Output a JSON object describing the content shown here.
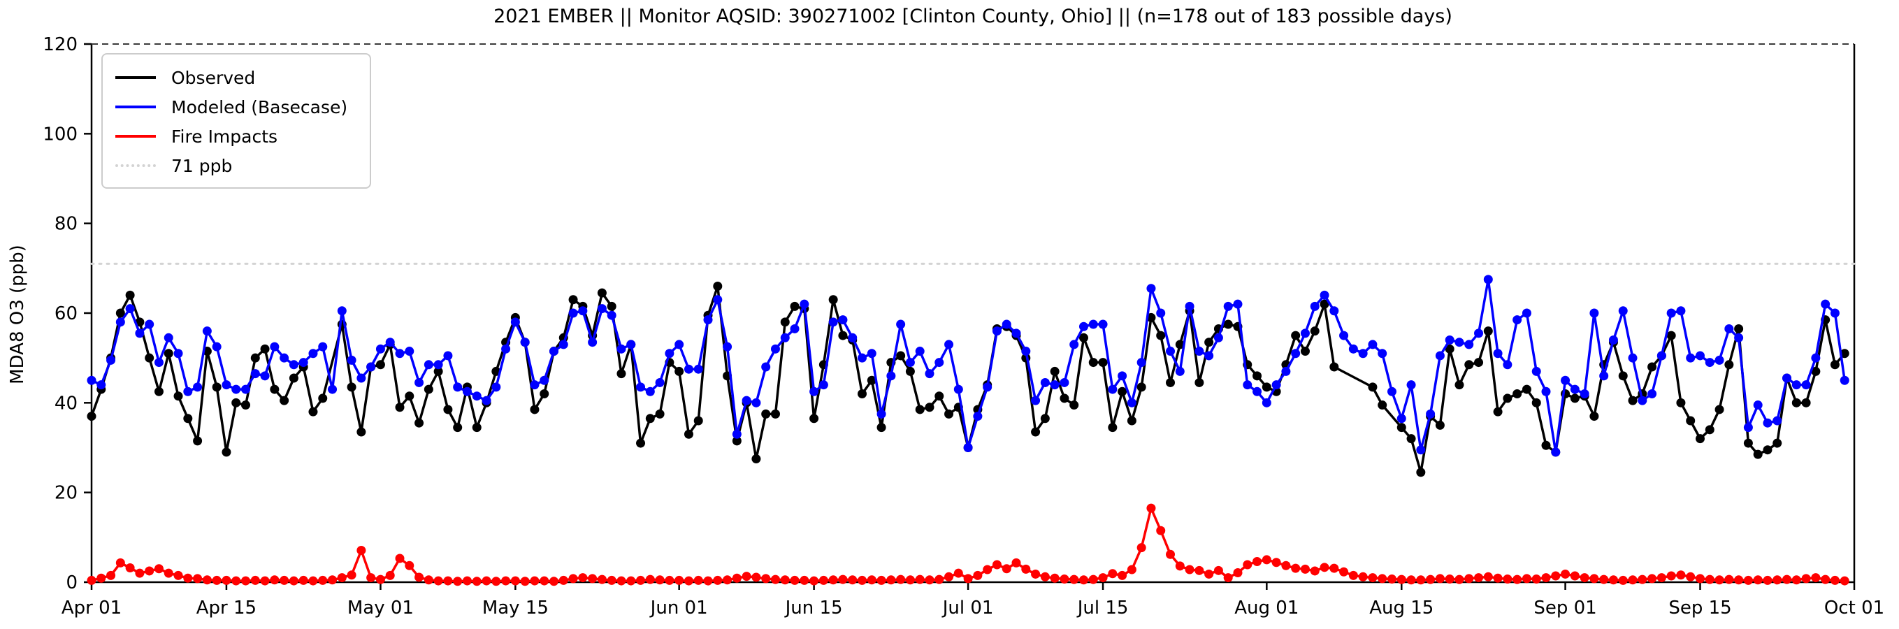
{
  "title": "2021 EMBER || Monitor AQSID: 390271002 [Clinton County, Ohio] || (n=178 out of 183 possible days)",
  "stats": {
    "n_observed": 178,
    "n_possible": 183
  },
  "axes": {
    "ylabel": "MDA8 O3 (ppb)",
    "ylim": [
      0,
      120
    ],
    "yticks": [
      0,
      20,
      40,
      60,
      80,
      100,
      120
    ],
    "xtick_labels": [
      "Apr 01",
      "Apr 15",
      "May 01",
      "May 15",
      "Jun 01",
      "Jun 15",
      "Jul 01",
      "Jul 15",
      "Aug 01",
      "Aug 15",
      "Sep 01",
      "Sep 15",
      "Oct 01"
    ],
    "xtick_day_offsets": [
      0,
      14,
      30,
      44,
      61,
      75,
      91,
      105,
      122,
      136,
      153,
      167,
      183
    ],
    "grid": false,
    "legend_position": "upper left"
  },
  "legend": {
    "items": [
      {
        "label": "Observed",
        "color": "#000000",
        "style": "solid"
      },
      {
        "label": "Modeled (Basecase)",
        "color": "#0000ff",
        "style": "solid"
      },
      {
        "label": "Fire Impacts",
        "color": "#ff0000",
        "style": "solid"
      },
      {
        "label": "71 ppb",
        "color": "#d3d3d3",
        "style": "dotted"
      }
    ]
  },
  "chart_data": {
    "type": "line",
    "title": "2021 EMBER || Monitor AQSID: 390271002 [Clinton County, Ohio] || (n=178 out of 183 possible days)",
    "xlabel": "",
    "ylabel": "MDA8 O3 (ppb)",
    "ylim": [
      0,
      120
    ],
    "x_start_date": "Apr 01",
    "x_end_date": "Oct 01",
    "n_days": 183,
    "threshold": {
      "label": "71 ppb",
      "value": 71,
      "color": "#d3d3d3",
      "style": "dotted"
    },
    "top_boundary": {
      "value": 120,
      "color": "#3a3a3a",
      "style": "dashed"
    },
    "series": [
      {
        "name": "Observed",
        "color": "#000000",
        "marker": "circle",
        "values": [
          37,
          43,
          50,
          60,
          64,
          58,
          50,
          42.5,
          51,
          41.5,
          36.5,
          31.5,
          51.5,
          43.5,
          29,
          40,
          39.5,
          50,
          52,
          43,
          40.5,
          45.5,
          48,
          38,
          41,
          null,
          57.5,
          43.5,
          33.5,
          48,
          48.5,
          53,
          39,
          41.5,
          35.5,
          43,
          47,
          38.5,
          34.5,
          43.5,
          34.5,
          40,
          47,
          53.5,
          59,
          53.5,
          38.5,
          42,
          51.5,
          54.5,
          63,
          61.5,
          55,
          64.5,
          61.5,
          46.5,
          53,
          31,
          36.5,
          37.5,
          49,
          47,
          33,
          36,
          59.5,
          66,
          46,
          31.5,
          40,
          27.5,
          37.5,
          37.5,
          58,
          61.5,
          61,
          36.5,
          48.5,
          63,
          55,
          54,
          42,
          45,
          34.5,
          49,
          50.5,
          47,
          38.5,
          39,
          41.5,
          37.5,
          39,
          30,
          38.5,
          44,
          56.5,
          57,
          55,
          50,
          33.5,
          36.5,
          47,
          41,
          39.5,
          54.5,
          49,
          49,
          34.5,
          42.5,
          36,
          43.5,
          59,
          55,
          44.5,
          53,
          60.5,
          44.5,
          53.5,
          56.5,
          57.5,
          57,
          48.5,
          46,
          43.5,
          42.5,
          48.5,
          55,
          51.5,
          56,
          62,
          48,
          null,
          null,
          null,
          43.5,
          39.5,
          null,
          34.5,
          32,
          24.5,
          37,
          35,
          52,
          44,
          48.5,
          49,
          56,
          38,
          41,
          42,
          43,
          40,
          30.5,
          29,
          42,
          41,
          41.5,
          37,
          48.5,
          53.5,
          46,
          40.5,
          42,
          48,
          50.5,
          55,
          40,
          36,
          32,
          34,
          38.5,
          48.5,
          56.5,
          31,
          28.5,
          29.5,
          31,
          45.5,
          40,
          40,
          47,
          58.5,
          48.5,
          51
        ]
      },
      {
        "name": "Modeled (Basecase)",
        "color": "#0000ff",
        "marker": "circle",
        "values": [
          45,
          44,
          49.5,
          58,
          61,
          55.5,
          57.5,
          49,
          54.5,
          51,
          42.5,
          43.5,
          56,
          52.5,
          44,
          43,
          43,
          46.5,
          46,
          52.5,
          50,
          48.5,
          49,
          51,
          52.5,
          43,
          60.5,
          49.5,
          45.5,
          48,
          52,
          53.5,
          51,
          51.5,
          44.5,
          48.5,
          48.5,
          50.5,
          43.5,
          42.5,
          41.5,
          40.5,
          43.5,
          52,
          58,
          53.5,
          44,
          45,
          51.5,
          53,
          60,
          60.5,
          53.5,
          61,
          59.5,
          52,
          53,
          43.5,
          42.5,
          44.5,
          51,
          53,
          47.5,
          47.5,
          58.5,
          63,
          52.5,
          33,
          40.5,
          40,
          48,
          52,
          54.5,
          56.5,
          62,
          42.5,
          44,
          58,
          58.5,
          54.5,
          50,
          51,
          37.5,
          46,
          57.5,
          49,
          51.5,
          46.5,
          49,
          53,
          43,
          30,
          37,
          43.5,
          56,
          57.5,
          55.5,
          51.5,
          40.5,
          44.5,
          44,
          44.5,
          53,
          57,
          57.5,
          57.5,
          43,
          46,
          40,
          49,
          65.5,
          60,
          51.5,
          47,
          61.5,
          51.5,
          50.5,
          54.5,
          61.5,
          62,
          44,
          42.5,
          40,
          44,
          47,
          51,
          55.5,
          61.5,
          64,
          60.5,
          55,
          52,
          51,
          53,
          51,
          42.5,
          36.5,
          44,
          29.5,
          37.5,
          50.5,
          54,
          53.5,
          53,
          55.5,
          67.5,
          51,
          48.5,
          58.5,
          60,
          47,
          42.5,
          29,
          45,
          43,
          42,
          60,
          46,
          54,
          60.5,
          50,
          40.5,
          42,
          50.5,
          60,
          60.5,
          50,
          50.5,
          49,
          49.5,
          56.5,
          54.5,
          34.5,
          39.5,
          35.5,
          36,
          45.5,
          44,
          44,
          50,
          62,
          60,
          45
        ]
      },
      {
        "name": "Fire Impacts",
        "color": "#ff0000",
        "marker": "circle",
        "values": [
          0.4,
          0.9,
          1.5,
          4.3,
          3.2,
          2.0,
          2.5,
          3.0,
          2.0,
          1.5,
          0.9,
          0.8,
          0.5,
          0.4,
          0.4,
          0.3,
          0.3,
          0.4,
          0.3,
          0.5,
          0.4,
          0.3,
          0.4,
          0.3,
          0.4,
          0.5,
          1.0,
          1.6,
          7.1,
          1.0,
          0.6,
          1.5,
          5.3,
          3.7,
          1.1,
          0.5,
          0.3,
          0.3,
          0.2,
          0.3,
          0.2,
          0.3,
          0.2,
          0.3,
          0.3,
          0.2,
          0.3,
          0.3,
          0.2,
          0.4,
          0.8,
          1.0,
          0.8,
          0.6,
          0.4,
          0.3,
          0.3,
          0.4,
          0.6,
          0.5,
          0.4,
          0.4,
          0.3,
          0.4,
          0.3,
          0.4,
          0.5,
          0.9,
          1.3,
          1.1,
          0.8,
          0.6,
          0.5,
          0.4,
          0.4,
          0.3,
          0.4,
          0.5,
          0.6,
          0.5,
          0.4,
          0.5,
          0.4,
          0.5,
          0.6,
          0.5,
          0.6,
          0.5,
          0.6,
          1.2,
          2.0,
          0.8,
          1.5,
          2.8,
          3.9,
          3.0,
          4.3,
          2.9,
          1.8,
          1.2,
          0.9,
          0.7,
          0.6,
          0.5,
          0.6,
          1.0,
          1.9,
          1.5,
          2.8,
          7.7,
          16.5,
          11.5,
          6.2,
          3.6,
          2.8,
          2.6,
          1.8,
          2.6,
          1.0,
          2.1,
          3.9,
          4.6,
          5.0,
          4.4,
          3.7,
          3.1,
          2.9,
          2.5,
          3.3,
          3.1,
          2.3,
          1.5,
          1.2,
          1.0,
          0.8,
          0.7,
          0.6,
          0.5,
          0.5,
          0.6,
          0.8,
          0.7,
          0.6,
          0.8,
          1.0,
          1.2,
          0.9,
          0.7,
          0.6,
          0.8,
          0.7,
          1.0,
          1.4,
          1.8,
          1.4,
          1.0,
          0.8,
          0.6,
          0.5,
          0.4,
          0.5,
          0.6,
          0.8,
          1.0,
          1.4,
          1.6,
          1.2,
          0.8,
          0.6,
          0.5,
          0.6,
          0.5,
          0.4,
          0.5,
          0.4,
          0.5,
          0.6,
          0.5,
          0.8,
          1.0,
          0.6,
          0.4,
          0.3
        ]
      }
    ]
  },
  "layout_colors": {
    "axis": "#000000",
    "threshold_line": "#d3d3d3",
    "top_dashed_line": "#3a3a3a",
    "background": "#ffffff",
    "legend_border": "#cccccc"
  }
}
